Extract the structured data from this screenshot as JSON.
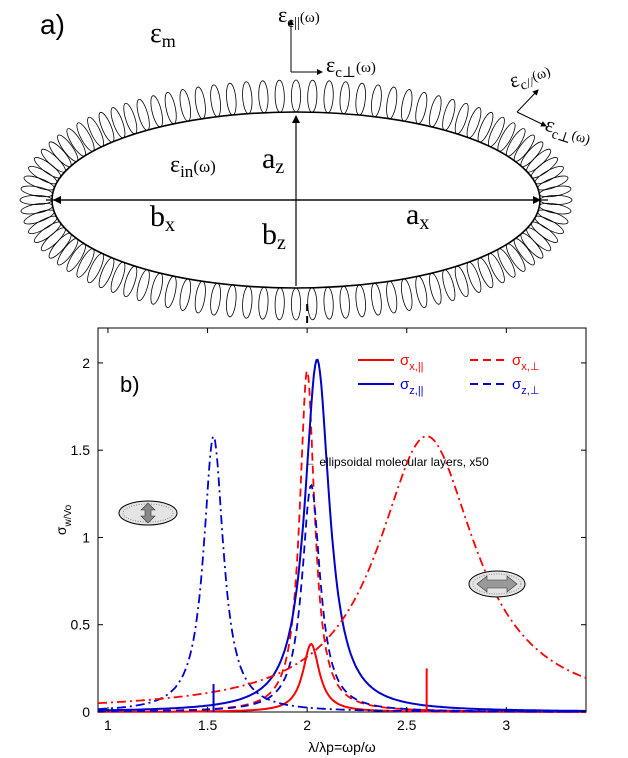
{
  "diagram": {
    "panel_label": "a)",
    "eps_m": "εm",
    "eps_in": "εin(ω)",
    "eps_c_par_top": "εc||(ω)",
    "eps_c_perp_top": "εc⊥(ω)",
    "eps_c_par_side": "εc//(ω)",
    "eps_c_perp_side": "εc⊥(ω)",
    "a_z": "az",
    "b_z": "bz",
    "a_x": "ax",
    "b_x": "bx"
  },
  "chart_data": {
    "type": "line",
    "panel_label": "b)",
    "title": "",
    "xlabel": "λ/λp=ωp/ω",
    "ylabel": "σw/Vo",
    "xlim": [
      0.95,
      3.4
    ],
    "ylim": [
      0,
      2.2
    ],
    "xticks": [
      1,
      1.5,
      2,
      2.5,
      3
    ],
    "yticks": [
      0,
      0.5,
      1,
      1.5,
      2
    ],
    "grid": false,
    "legend_position": "top-right",
    "annotation": "← ellipsoidal molecular layers, x50",
    "colors": {
      "red": "#ff0000",
      "blue": "#0000cc"
    },
    "series": [
      {
        "name": "σx,||",
        "color": "#ff0000",
        "style": "solid",
        "peak_x": 2.02,
        "peak_y": 0.39,
        "width": 0.05
      },
      {
        "name": "σx,⊥",
        "color": "#ff0000",
        "style": "dashed",
        "peak_x": 2.0,
        "peak_y": 1.96,
        "width": 0.045
      },
      {
        "name": "σz,||",
        "color": "#0000cc",
        "style": "solid",
        "peak_x": 2.05,
        "peak_y": 2.02,
        "width": 0.075
      },
      {
        "name": "σz,⊥",
        "color": "#0000cc",
        "style": "dashed",
        "peak_x": 2.02,
        "peak_y": 1.3,
        "width": 0.055
      },
      {
        "name": "",
        "color": "#0000cc",
        "style": "dashdot",
        "peak_x": 1.53,
        "peak_y": 1.58,
        "width": 0.06
      },
      {
        "name": "",
        "color": "#ff0000",
        "style": "dashdot",
        "peak_x": 2.6,
        "peak_y": 1.58,
        "width": 0.3
      }
    ],
    "markers": [
      {
        "x": 1.53,
        "y": 0.16,
        "color": "#0000cc"
      },
      {
        "x": 2.6,
        "y": 0.25,
        "color": "#ff0000"
      }
    ],
    "center_marker_x": 2.0,
    "icons": [
      "vertical-arrow-ellipsoid-icon",
      "horizontal-arrow-ellipsoid-icon"
    ]
  }
}
